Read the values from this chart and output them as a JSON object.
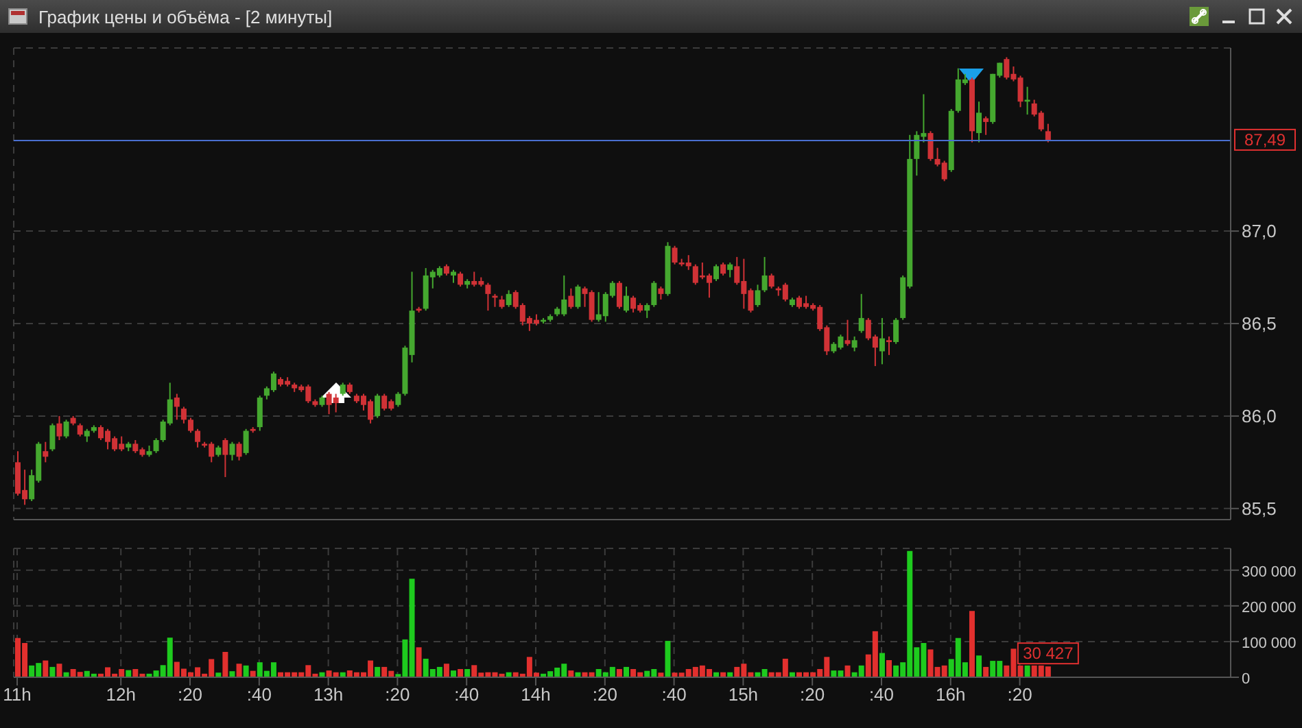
{
  "chart_data": [
    {
      "type": "candlestick",
      "title": "График цены и объёма - [2 минуты]",
      "categories": [
        null,
        null,
        null,
        null,
        null,
        null,
        null,
        null,
        null,
        null,
        null,
        null,
        null,
        null,
        null,
        null,
        null,
        null,
        null,
        null,
        null,
        null,
        null,
        null,
        null,
        null,
        null,
        null,
        null,
        null,
        null,
        null,
        null,
        null,
        null,
        null,
        null,
        null,
        null,
        null,
        null,
        null,
        null,
        null,
        null,
        null,
        null,
        null,
        null,
        null,
        null,
        null,
        null,
        null,
        null,
        null,
        null,
        null,
        null,
        null,
        null,
        null,
        null,
        null,
        null,
        null,
        null,
        null,
        null,
        null,
        null,
        null,
        null,
        null,
        null,
        null,
        null,
        null,
        null,
        null,
        null,
        null,
        null,
        null,
        null,
        null,
        null,
        null,
        null,
        null,
        null,
        null,
        null,
        null,
        null,
        null,
        null,
        null,
        null,
        null,
        null,
        null,
        null,
        null,
        null,
        null,
        null,
        null,
        null,
        null,
        null,
        null,
        null,
        null,
        null,
        null,
        null,
        null,
        null,
        null,
        null,
        null,
        null,
        null,
        null,
        null,
        null,
        null,
        null,
        null,
        null,
        null,
        null,
        null,
        null,
        null,
        null,
        null,
        null,
        null,
        null,
        null,
        null,
        null,
        null,
        null,
        null,
        null,
        null,
        null,
        null,
        null,
        null,
        null,
        null,
        null,
        null,
        null,
        null,
        null,
        null,
        null,
        null,
        null,
        null,
        null,
        null,
        null,
        null,
        null,
        null,
        null,
        null,
        null,
        null,
        null
      ],
      "ohlc": [
        [
          85.75,
          85.81,
          85.57,
          85.58
        ],
        [
          85.6,
          85.71,
          85.52,
          85.55
        ],
        [
          85.55,
          85.71,
          85.54,
          85.68
        ],
        [
          85.65,
          85.86,
          85.64,
          85.85
        ],
        [
          85.81,
          85.86,
          85.75,
          85.78
        ],
        [
          85.82,
          85.96,
          85.81,
          85.95
        ],
        [
          85.96,
          86.0,
          85.87,
          85.89
        ],
        [
          85.89,
          85.98,
          85.88,
          85.97
        ],
        [
          85.99,
          86.0,
          85.95,
          85.96
        ],
        [
          85.95,
          85.96,
          85.89,
          85.9
        ],
        [
          85.89,
          85.93,
          85.86,
          85.92
        ],
        [
          85.92,
          85.95,
          85.91,
          85.94
        ],
        [
          85.94,
          85.95,
          85.87,
          85.88
        ],
        [
          85.92,
          85.93,
          85.82,
          85.86
        ],
        [
          85.88,
          85.89,
          85.81,
          85.82
        ],
        [
          85.85,
          85.89,
          85.81,
          85.82
        ],
        [
          85.83,
          85.86,
          85.81,
          85.85
        ],
        [
          85.85,
          85.87,
          85.8,
          85.81
        ],
        [
          85.82,
          85.83,
          85.78,
          85.79
        ],
        [
          85.79,
          85.84,
          85.78,
          85.81
        ],
        [
          85.81,
          85.88,
          85.8,
          85.87
        ],
        [
          85.87,
          85.98,
          85.86,
          85.97
        ],
        [
          85.96,
          86.18,
          85.95,
          86.09
        ],
        [
          86.1,
          86.12,
          85.98,
          86.05
        ],
        [
          86.04,
          86.05,
          85.96,
          85.98
        ],
        [
          85.98,
          85.99,
          85.91,
          85.92
        ],
        [
          85.92,
          85.93,
          85.83,
          85.86
        ],
        [
          85.85,
          85.86,
          85.83,
          85.84
        ],
        [
          85.85,
          85.86,
          85.75,
          85.78
        ],
        [
          85.79,
          85.84,
          85.78,
          85.83
        ],
        [
          85.87,
          85.88,
          85.67,
          85.79
        ],
        [
          85.79,
          85.86,
          85.76,
          85.85
        ],
        [
          85.85,
          85.86,
          85.76,
          85.78
        ],
        [
          85.8,
          85.93,
          85.79,
          85.92
        ],
        [
          85.93,
          85.94,
          85.91,
          85.92
        ],
        [
          85.94,
          86.11,
          85.92,
          86.1
        ],
        [
          86.11,
          86.16,
          86.09,
          86.15
        ],
        [
          86.14,
          86.24,
          86.13,
          86.23
        ],
        [
          86.2,
          86.21,
          86.16,
          86.17
        ],
        [
          86.19,
          86.21,
          86.16,
          86.17
        ],
        [
          86.17,
          86.18,
          86.13,
          86.15
        ],
        [
          86.16,
          86.17,
          86.13,
          86.14
        ],
        [
          86.16,
          86.17,
          86.07,
          86.08
        ],
        [
          86.08,
          86.09,
          86.05,
          86.06
        ],
        [
          86.06,
          86.11,
          86.05,
          86.1
        ],
        [
          86.12,
          86.13,
          86.01,
          86.06
        ],
        [
          86.1,
          86.12,
          86.02,
          86.07
        ],
        [
          86.12,
          86.18,
          86.11,
          86.17
        ],
        [
          86.17,
          86.18,
          86.12,
          86.13
        ],
        [
          86.11,
          86.12,
          86.07,
          86.08
        ],
        [
          86.11,
          86.12,
          86.03,
          86.06
        ],
        [
          86.08,
          86.09,
          85.96,
          85.98
        ],
        [
          86.0,
          86.12,
          85.99,
          86.11
        ],
        [
          86.11,
          86.12,
          86.03,
          86.04
        ],
        [
          86.08,
          86.09,
          86.03,
          86.04
        ],
        [
          86.06,
          86.13,
          86.05,
          86.12
        ],
        [
          86.12,
          86.38,
          86.11,
          86.37
        ],
        [
          86.33,
          86.78,
          86.29,
          86.57
        ],
        [
          86.58,
          86.59,
          86.56,
          86.57
        ],
        [
          86.58,
          86.8,
          86.57,
          86.76
        ],
        [
          86.75,
          86.79,
          86.69,
          86.78
        ],
        [
          86.76,
          86.81,
          86.75,
          86.8
        ],
        [
          86.81,
          86.82,
          86.76,
          86.77
        ],
        [
          86.76,
          86.79,
          86.72,
          86.78
        ],
        [
          86.77,
          86.78,
          86.7,
          86.71
        ],
        [
          86.71,
          86.74,
          86.69,
          86.73
        ],
        [
          86.73,
          86.78,
          86.7,
          86.71
        ],
        [
          86.73,
          86.75,
          86.7,
          86.71
        ],
        [
          86.71,
          86.72,
          86.57,
          86.66
        ],
        [
          86.65,
          86.66,
          86.59,
          86.64
        ],
        [
          86.63,
          86.65,
          86.58,
          86.59
        ],
        [
          86.6,
          86.68,
          86.59,
          86.66
        ],
        [
          86.67,
          86.68,
          86.58,
          86.59
        ],
        [
          86.6,
          86.61,
          86.49,
          86.51
        ],
        [
          86.53,
          86.54,
          86.46,
          86.5
        ],
        [
          86.52,
          86.55,
          86.49,
          86.5
        ],
        [
          86.51,
          86.53,
          86.5,
          86.52
        ],
        [
          86.52,
          86.55,
          86.51,
          86.54
        ],
        [
          86.55,
          86.59,
          86.54,
          86.58
        ],
        [
          86.55,
          86.76,
          86.54,
          86.63
        ],
        [
          86.65,
          86.69,
          86.58,
          86.59
        ],
        [
          86.59,
          86.71,
          86.58,
          86.7
        ],
        [
          86.69,
          86.7,
          86.59,
          86.66
        ],
        [
          86.67,
          86.68,
          86.51,
          86.52
        ],
        [
          86.52,
          86.67,
          86.51,
          86.55
        ],
        [
          86.54,
          86.67,
          86.51,
          86.66
        ],
        [
          86.65,
          86.73,
          86.64,
          86.72
        ],
        [
          86.72,
          86.73,
          86.58,
          86.59
        ],
        [
          86.57,
          86.7,
          86.56,
          86.65
        ],
        [
          86.64,
          86.65,
          86.56,
          86.58
        ],
        [
          86.6,
          86.61,
          86.56,
          86.57
        ],
        [
          86.57,
          86.61,
          86.53,
          86.6
        ],
        [
          86.6,
          86.73,
          86.59,
          86.72
        ],
        [
          86.69,
          86.7,
          86.63,
          86.66
        ],
        [
          86.66,
          86.94,
          86.65,
          86.92
        ],
        [
          86.91,
          86.92,
          86.82,
          86.83
        ],
        [
          86.83,
          86.85,
          86.81,
          86.82
        ],
        [
          86.83,
          86.87,
          86.79,
          86.81
        ],
        [
          86.81,
          86.82,
          86.71,
          86.72
        ],
        [
          86.76,
          86.83,
          86.74,
          86.75
        ],
        [
          86.76,
          86.77,
          86.64,
          86.72
        ],
        [
          86.74,
          86.82,
          86.73,
          86.81
        ],
        [
          86.82,
          86.83,
          86.76,
          86.77
        ],
        [
          86.79,
          86.83,
          86.75,
          86.82
        ],
        [
          86.81,
          86.86,
          86.71,
          86.72
        ],
        [
          86.73,
          86.85,
          86.58,
          86.66
        ],
        [
          86.68,
          86.69,
          86.56,
          86.57
        ],
        [
          86.6,
          86.71,
          86.59,
          86.68
        ],
        [
          86.68,
          86.86,
          86.67,
          86.76
        ],
        [
          86.76,
          86.77,
          86.69,
          86.7
        ],
        [
          86.69,
          86.7,
          86.65,
          86.68
        ],
        [
          86.71,
          86.72,
          86.62,
          86.63
        ],
        [
          86.6,
          86.64,
          86.59,
          86.63
        ],
        [
          86.64,
          86.65,
          86.58,
          86.59
        ],
        [
          86.61,
          86.65,
          86.58,
          86.59
        ],
        [
          86.6,
          86.61,
          86.57,
          86.58
        ],
        [
          86.59,
          86.6,
          86.46,
          86.47
        ],
        [
          86.48,
          86.49,
          86.33,
          86.35
        ],
        [
          86.35,
          86.4,
          86.34,
          86.39
        ],
        [
          86.37,
          86.44,
          86.36,
          86.43
        ],
        [
          86.41,
          86.52,
          86.38,
          86.39
        ],
        [
          86.37,
          86.43,
          86.35,
          86.41
        ],
        [
          86.46,
          86.66,
          86.45,
          86.53
        ],
        [
          86.52,
          86.53,
          86.41,
          86.42
        ],
        [
          86.43,
          86.44,
          86.27,
          86.37
        ],
        [
          86.35,
          86.53,
          86.28,
          86.42
        ],
        [
          86.41,
          86.43,
          86.33,
          86.4
        ],
        [
          86.4,
          86.53,
          86.39,
          86.52
        ],
        [
          86.53,
          86.76,
          86.52,
          86.75
        ],
        [
          86.7,
          87.52,
          86.69,
          87.39
        ],
        [
          87.39,
          87.54,
          87.3,
          87.52
        ],
        [
          87.51,
          87.74,
          87.48,
          87.53
        ],
        [
          87.53,
          87.54,
          87.38,
          87.39
        ],
        [
          87.39,
          87.45,
          87.35,
          87.36
        ],
        [
          87.37,
          87.38,
          87.27,
          87.28
        ],
        [
          87.33,
          87.66,
          87.32,
          87.65
        ],
        [
          87.65,
          87.88,
          87.64,
          87.82
        ],
        [
          87.8,
          87.85,
          87.79,
          87.82
        ],
        [
          87.82,
          87.83,
          87.48,
          87.54
        ],
        [
          87.53,
          87.7,
          87.48,
          87.64
        ],
        [
          87.61,
          87.62,
          87.52,
          87.59
        ],
        [
          87.59,
          87.85,
          87.58,
          87.85
        ],
        [
          87.84,
          87.91,
          87.83,
          87.91
        ],
        [
          87.93,
          87.94,
          87.82,
          87.83
        ],
        [
          87.85,
          87.89,
          87.81,
          87.82
        ],
        [
          87.83,
          87.84,
          87.67,
          87.7
        ],
        [
          87.7,
          87.78,
          87.63,
          87.71
        ],
        [
          87.69,
          87.71,
          87.62,
          87.63
        ],
        [
          87.64,
          87.65,
          87.54,
          87.55
        ],
        [
          87.54,
          87.58,
          87.48,
          87.49
        ],
        null,
        null,
        null,
        null,
        null,
        null,
        null,
        null,
        null,
        null,
        null,
        null,
        null,
        null,
        null,
        null,
        null,
        null,
        null,
        null,
        null,
        null,
        null,
        null,
        null,
        null
      ],
      "colors": [
        "#d03236",
        "#d03236",
        "#45a82f",
        "#45a82f",
        "#d03236",
        "#45a82f",
        "#d03236",
        "#45a82f",
        "#d03236",
        "#d03236",
        "#45a82f",
        "#45a82f",
        "#d03236",
        "#d03236",
        "#d03236",
        "#d03236",
        "#45a82f",
        "#d03236",
        "#d03236",
        "#45a82f",
        "#45a82f",
        "#45a82f",
        "#45a82f",
        "#d03236",
        "#d03236",
        "#d03236",
        "#d03236",
        "#d03236",
        "#d03236",
        "#45a82f",
        "#d03236",
        "#45a82f",
        "#d03236",
        "#45a82f",
        "#d03236",
        "#45a82f",
        "#45a82f",
        "#45a82f",
        "#d03236",
        "#d03236",
        "#d03236",
        "#d03236",
        "#d03236",
        "#d03236",
        "#45a82f",
        "#d03236",
        "#d03236",
        "#45a82f",
        "#d03236",
        "#d03236",
        "#d03236",
        "#d03236",
        "#45a82f",
        "#d03236",
        "#d03236",
        "#45a82f",
        "#45a82f",
        "#45a82f",
        "#d03236",
        "#45a82f",
        "#45a82f",
        "#45a82f",
        "#d03236",
        "#45a82f",
        "#d03236",
        "#45a82f",
        "#d03236",
        "#d03236",
        "#d03236",
        "#d03236",
        "#d03236",
        "#45a82f",
        "#d03236",
        "#d03236",
        "#d03236",
        "#d03236",
        "#45a82f",
        "#45a82f",
        "#45a82f",
        "#45a82f",
        "#d03236",
        "#45a82f",
        "#d03236",
        "#d03236",
        "#45a82f",
        "#45a82f",
        "#45a82f",
        "#d03236",
        "#45a82f",
        "#d03236",
        "#d03236",
        "#45a82f",
        "#45a82f",
        "#d03236",
        "#45a82f",
        "#d03236",
        "#d03236",
        "#d03236",
        "#d03236",
        "#d03236",
        "#d03236",
        "#45a82f",
        "#d03236",
        "#45a82f",
        "#d03236",
        "#d03236",
        "#d03236",
        "#45a82f",
        "#45a82f",
        "#d03236",
        "#d03236",
        "#d03236",
        "#45a82f",
        "#d03236",
        "#d03236",
        "#d03236",
        "#d03236",
        "#d03236",
        "#45a82f",
        "#45a82f",
        "#d03236",
        "#45a82f",
        "#45a82f",
        "#d03236",
        "#d03236",
        "#45a82f",
        "#d03236",
        "#45a82f",
        "#45a82f",
        "#45a82f",
        "#45a82f",
        "#45a82f",
        "#d03236",
        "#d03236",
        "#d03236",
        "#45a82f",
        "#45a82f",
        "#45a82f",
        "#d03236",
        "#45a82f",
        "#d03236",
        "#45a82f",
        "#45a82f",
        "#d03236",
        "#d03236",
        "#d03236",
        "#45a82f",
        "#d03236",
        "#d03236",
        "#d03236",
        null,
        null,
        null,
        null,
        null,
        null,
        null,
        null,
        null,
        null,
        null,
        null,
        null,
        null,
        null,
        null,
        null,
        null,
        null,
        null,
        null,
        null,
        null,
        null,
        null,
        null
      ],
      "ylim": [
        85.44,
        87.99
      ],
      "yticks": [
        {
          "value": 85.5,
          "label": "85,5"
        },
        {
          "value": 86.0,
          "label": "86,0"
        },
        {
          "value": 86.5,
          "label": "86,5"
        },
        {
          "value": 87.0,
          "label": "87,0"
        }
      ],
      "ref_lines": [
        {
          "axis": "y",
          "value": 87.49,
          "label": "87,49",
          "color": "#4a6fd0"
        }
      ],
      "grid": true,
      "tick_labels": "y"
    },
    {
      "type": "bar",
      "categories": [
        "11h",
        null,
        null,
        null,
        null,
        null,
        null,
        null,
        null,
        null,
        null,
        null,
        null,
        null,
        null,
        "12h",
        null,
        null,
        null,
        null,
        null,
        null,
        null,
        null,
        null,
        ":20",
        null,
        null,
        null,
        null,
        null,
        null,
        null,
        null,
        null,
        ":40",
        null,
        null,
        null,
        null,
        null,
        null,
        null,
        null,
        null,
        "13h",
        null,
        null,
        null,
        null,
        null,
        null,
        null,
        null,
        null,
        ":20",
        null,
        null,
        null,
        null,
        null,
        null,
        null,
        null,
        null,
        ":40",
        null,
        null,
        null,
        null,
        null,
        null,
        null,
        null,
        null,
        "14h",
        null,
        null,
        null,
        null,
        null,
        null,
        null,
        null,
        null,
        ":20",
        null,
        null,
        null,
        null,
        null,
        null,
        null,
        null,
        null,
        ":40",
        null,
        null,
        null,
        null,
        null,
        null,
        null,
        null,
        null,
        "15h",
        null,
        null,
        null,
        null,
        null,
        null,
        null,
        null,
        null,
        ":20",
        null,
        null,
        null,
        null,
        null,
        null,
        null,
        null,
        null,
        ":40",
        null,
        null,
        null,
        null,
        null,
        null,
        null,
        null,
        null,
        "16h",
        null,
        null,
        null,
        null,
        null,
        null,
        null,
        null,
        null,
        ":20",
        null,
        null,
        null,
        null,
        null,
        null,
        null,
        null,
        null,
        null,
        null,
        null,
        null,
        null,
        null,
        null,
        null,
        null,
        null,
        null,
        null,
        null,
        null,
        null,
        null,
        null,
        null,
        null,
        null,
        null
      ],
      "values": [
        110000,
        96000,
        33000,
        40000,
        47000,
        29000,
        38000,
        14000,
        23000,
        15000,
        18000,
        10000,
        10000,
        28000,
        10000,
        23000,
        20000,
        23000,
        10000,
        10000,
        19000,
        34000,
        111000,
        43000,
        24000,
        14000,
        28000,
        10000,
        51000,
        13000,
        71000,
        17000,
        38000,
        33000,
        18000,
        42000,
        18000,
        42000,
        14000,
        14000,
        14000,
        14000,
        34000,
        10000,
        14000,
        19000,
        14000,
        14000,
        19000,
        14000,
        14000,
        47000,
        29000,
        29000,
        18000,
        9000,
        106000,
        276000,
        84000,
        52000,
        23000,
        29000,
        38000,
        19000,
        23000,
        23000,
        34000,
        13000,
        14000,
        14000,
        10000,
        14000,
        14000,
        10000,
        57000,
        13000,
        10000,
        17000,
        27000,
        38000,
        19000,
        14000,
        14000,
        14000,
        23000,
        14000,
        29000,
        23000,
        29000,
        23000,
        14000,
        18000,
        23000,
        13000,
        102000,
        13000,
        13000,
        23000,
        29000,
        33000,
        23000,
        14000,
        14000,
        14000,
        29000,
        38000,
        14000,
        14000,
        23000,
        14000,
        14000,
        52000,
        14000,
        14000,
        14000,
        14000,
        23000,
        57000,
        19000,
        19000,
        33000,
        14000,
        33000,
        64000,
        129000,
        68000,
        48000,
        33000,
        42000,
        354000,
        84000,
        96000,
        78000,
        29000,
        33000,
        51000,
        110000,
        42000,
        186000,
        61000,
        29000,
        46000,
        46000,
        33000,
        80000,
        33000,
        33000,
        33000,
        33000,
        30427,
        null,
        null,
        null,
        null,
        null,
        null,
        null,
        null,
        null,
        null,
        null,
        null,
        null,
        null,
        null,
        null,
        null,
        null,
        null,
        null,
        null,
        null,
        null,
        null,
        null,
        null
      ],
      "colors": [
        "#e2302e",
        "#e2302e",
        "#1ecb1e",
        "#1ecb1e",
        "#e2302e",
        "#1ecb1e",
        "#e2302e",
        "#1ecb1e",
        "#e2302e",
        "#e2302e",
        "#1ecb1e",
        "#1ecb1e",
        "#e2302e",
        "#e2302e",
        "#e2302e",
        "#e2302e",
        "#1ecb1e",
        "#e2302e",
        "#e2302e",
        "#1ecb1e",
        "#1ecb1e",
        "#1ecb1e",
        "#1ecb1e",
        "#e2302e",
        "#e2302e",
        "#e2302e",
        "#e2302e",
        "#e2302e",
        "#e2302e",
        "#1ecb1e",
        "#e2302e",
        "#1ecb1e",
        "#e2302e",
        "#1ecb1e",
        "#e2302e",
        "#1ecb1e",
        "#1ecb1e",
        "#1ecb1e",
        "#e2302e",
        "#e2302e",
        "#e2302e",
        "#e2302e",
        "#e2302e",
        "#e2302e",
        "#1ecb1e",
        "#e2302e",
        "#e2302e",
        "#1ecb1e",
        "#e2302e",
        "#e2302e",
        "#e2302e",
        "#e2302e",
        "#1ecb1e",
        "#e2302e",
        "#e2302e",
        "#1ecb1e",
        "#1ecb1e",
        "#1ecb1e",
        "#e2302e",
        "#1ecb1e",
        "#1ecb1e",
        "#1ecb1e",
        "#e2302e",
        "#1ecb1e",
        "#e2302e",
        "#1ecb1e",
        "#e2302e",
        "#e2302e",
        "#e2302e",
        "#e2302e",
        "#e2302e",
        "#1ecb1e",
        "#e2302e",
        "#e2302e",
        "#e2302e",
        "#e2302e",
        "#1ecb1e",
        "#1ecb1e",
        "#1ecb1e",
        "#1ecb1e",
        "#e2302e",
        "#1ecb1e",
        "#e2302e",
        "#e2302e",
        "#1ecb1e",
        "#1ecb1e",
        "#1ecb1e",
        "#e2302e",
        "#1ecb1e",
        "#e2302e",
        "#e2302e",
        "#1ecb1e",
        "#1ecb1e",
        "#e2302e",
        "#1ecb1e",
        "#e2302e",
        "#e2302e",
        "#e2302e",
        "#e2302e",
        "#e2302e",
        "#e2302e",
        "#1ecb1e",
        "#e2302e",
        "#1ecb1e",
        "#e2302e",
        "#e2302e",
        "#e2302e",
        "#1ecb1e",
        "#1ecb1e",
        "#e2302e",
        "#e2302e",
        "#e2302e",
        "#1ecb1e",
        "#e2302e",
        "#e2302e",
        "#e2302e",
        "#e2302e",
        "#e2302e",
        "#1ecb1e",
        "#1ecb1e",
        "#e2302e",
        "#1ecb1e",
        "#1ecb1e",
        "#e2302e",
        "#e2302e",
        "#1ecb1e",
        "#e2302e",
        "#1ecb1e",
        "#1ecb1e",
        "#1ecb1e",
        "#1ecb1e",
        "#1ecb1e",
        "#e2302e",
        "#e2302e",
        "#e2302e",
        "#1ecb1e",
        "#1ecb1e",
        "#1ecb1e",
        "#e2302e",
        "#1ecb1e",
        "#e2302e",
        "#1ecb1e",
        "#1ecb1e",
        "#e2302e",
        "#e2302e",
        "#e2302e",
        "#1ecb1e",
        "#e2302e",
        "#e2302e",
        "#e2302e",
        null,
        null,
        null,
        null,
        null,
        null,
        null,
        null,
        null,
        null,
        null,
        null,
        null,
        null,
        null,
        null,
        null,
        null,
        null,
        null,
        null,
        null,
        null,
        null,
        null,
        null
      ],
      "value_labels": [
        null,
        null,
        null,
        null,
        null,
        null,
        null,
        null,
        null,
        null,
        null,
        null,
        null,
        null,
        null,
        null,
        null,
        null,
        null,
        null,
        null,
        null,
        null,
        null,
        null,
        null,
        null,
        null,
        null,
        null,
        null,
        null,
        null,
        null,
        null,
        null,
        null,
        null,
        null,
        null,
        null,
        null,
        null,
        null,
        null,
        null,
        null,
        null,
        null,
        null,
        null,
        null,
        null,
        null,
        null,
        null,
        null,
        null,
        null,
        null,
        null,
        null,
        null,
        null,
        null,
        null,
        null,
        null,
        null,
        null,
        null,
        null,
        null,
        null,
        null,
        null,
        null,
        null,
        null,
        null,
        null,
        null,
        null,
        null,
        null,
        null,
        null,
        null,
        null,
        null,
        null,
        null,
        null,
        null,
        null,
        null,
        null,
        null,
        null,
        null,
        null,
        null,
        null,
        null,
        null,
        null,
        null,
        null,
        null,
        null,
        null,
        null,
        null,
        null,
        null,
        null,
        null,
        null,
        null,
        null,
        null,
        null,
        null,
        null,
        null,
        null,
        null,
        null,
        null,
        null,
        null,
        null,
        null,
        null,
        null,
        null,
        null,
        null,
        null,
        null,
        null,
        null,
        null,
        null,
        null,
        null,
        null,
        null,
        null,
        "30 427",
        null,
        null,
        null,
        null,
        null,
        null,
        null,
        null,
        null,
        null,
        null,
        null,
        null,
        null,
        null,
        null,
        null,
        null,
        null,
        null,
        null,
        null,
        null,
        null,
        null,
        null
      ],
      "ylim": [
        0,
        361000
      ],
      "yticks": [
        0,
        {
          "value": 100000,
          "label": "100 000"
        },
        {
          "value": 200000,
          "label": "200 000"
        },
        {
          "value": 300000,
          "label": "300 000"
        }
      ],
      "grid": true
    }
  ]
}
